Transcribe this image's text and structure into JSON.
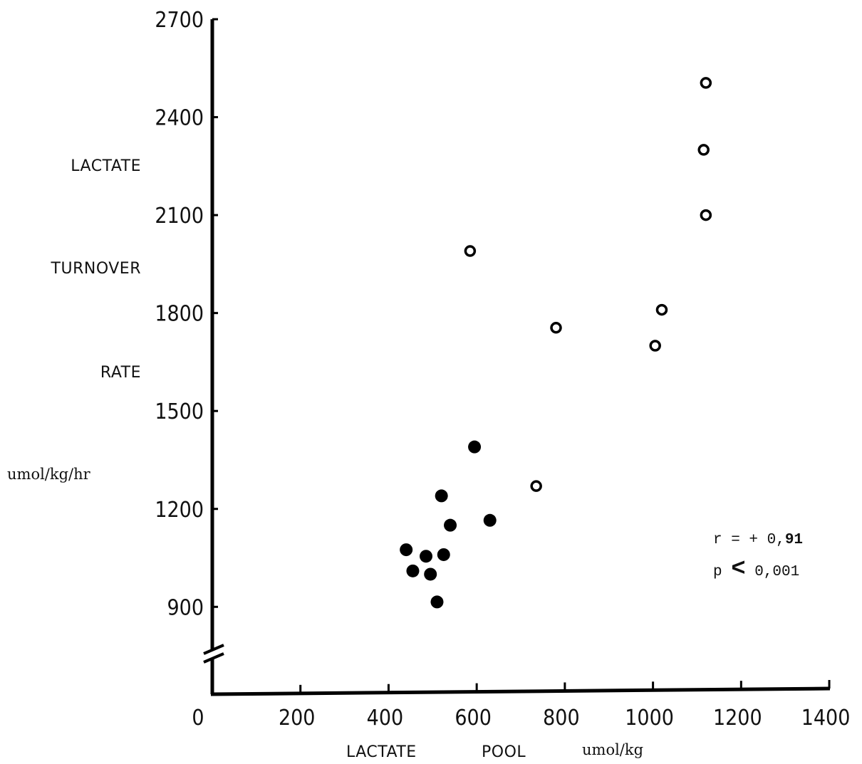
{
  "chart_data": {
    "type": "scatter",
    "xlim": [
      0,
      1400
    ],
    "ylim": [
      600,
      2700
    ],
    "y_axis_break": true,
    "grid": false,
    "x_ticks": [
      0,
      200,
      400,
      600,
      800,
      1000,
      1200,
      1400
    ],
    "x_tick_labels": [
      "0",
      "200",
      "400",
      "600",
      "800",
      "1000",
      "1200",
      "1400"
    ],
    "y_ticks": [
      900,
      1200,
      1500,
      1800,
      2100,
      2400,
      2700
    ],
    "y_tick_labels": [
      "900",
      "1200",
      "1500",
      "1800",
      "2100",
      "2400",
      "2700"
    ],
    "xlabel": [
      "LACTATE",
      "POOL"
    ],
    "xlabel_unit": "umol/kg",
    "ylabel": [
      "LACTATE",
      "TURNOVER",
      "RATE"
    ],
    "ylabel_unit": "umol/kg/hr",
    "series": [
      {
        "marker": "filled-circle",
        "color": "#000000",
        "points": [
          {
            "x": 440,
            "y": 1075
          },
          {
            "x": 455,
            "y": 1010
          },
          {
            "x": 485,
            "y": 1055
          },
          {
            "x": 495,
            "y": 1000
          },
          {
            "x": 510,
            "y": 915
          },
          {
            "x": 520,
            "y": 1240
          },
          {
            "x": 525,
            "y": 1060
          },
          {
            "x": 540,
            "y": 1150
          },
          {
            "x": 595,
            "y": 1390
          },
          {
            "x": 630,
            "y": 1165
          }
        ]
      },
      {
        "marker": "open-circle",
        "color": "#000000",
        "points": [
          {
            "x": 585,
            "y": 1990
          },
          {
            "x": 735,
            "y": 1270
          },
          {
            "x": 780,
            "y": 1755
          },
          {
            "x": 1005,
            "y": 1700
          },
          {
            "x": 1020,
            "y": 1810
          },
          {
            "x": 1115,
            "y": 2300
          },
          {
            "x": 1120,
            "y": 2505
          },
          {
            "x": 1120,
            "y": 2100
          }
        ]
      }
    ],
    "annotations": {
      "r_line": {
        "prefix": "r = + 0,",
        "bold_digits": "91"
      },
      "p_line": {
        "prefix": "p",
        "symbol": "<",
        "value": "0,001"
      }
    }
  }
}
